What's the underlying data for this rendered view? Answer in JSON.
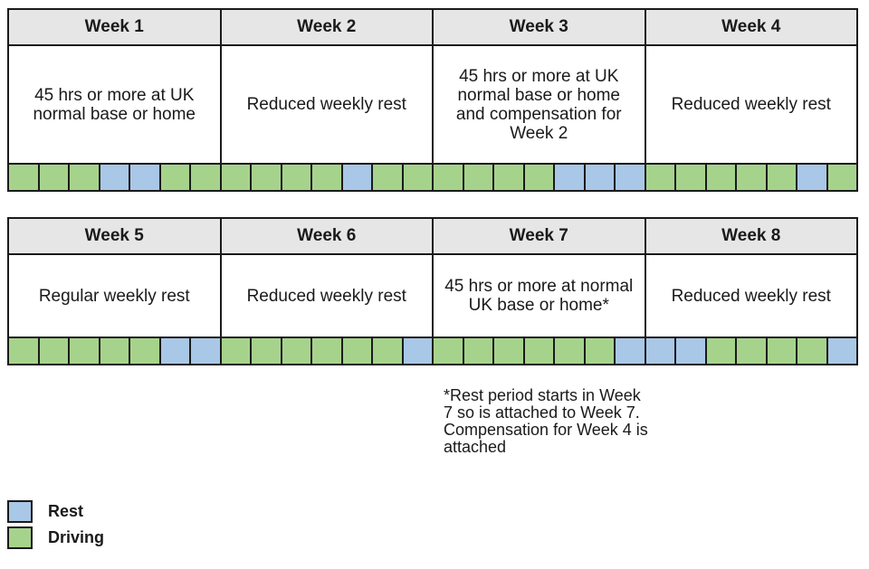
{
  "colors": {
    "driving": "#a6d38c",
    "rest": "#a9c7e6",
    "header_bg": "#e6e6e6"
  },
  "blocks": [
    {
      "weeks": [
        {
          "label": "Week 1",
          "description": "45 hrs or more at UK normal base or home"
        },
        {
          "label": "Week 2",
          "description": "Reduced weekly rest"
        },
        {
          "label": "Week 3",
          "description": "45 hrs or more at UK normal base or home and compensation for Week 2"
        },
        {
          "label": "Week 4",
          "description": "Reduced weekly rest"
        }
      ],
      "days": [
        "driving",
        "driving",
        "driving",
        "rest",
        "rest",
        "driving",
        "driving",
        "driving",
        "driving",
        "driving",
        "driving",
        "rest",
        "driving",
        "driving",
        "driving",
        "driving",
        "driving",
        "driving",
        "rest",
        "rest",
        "rest",
        "driving",
        "driving",
        "driving",
        "driving",
        "driving",
        "rest",
        "driving"
      ]
    },
    {
      "weeks": [
        {
          "label": "Week 5",
          "description": "Regular weekly rest"
        },
        {
          "label": "Week 6",
          "description": "Reduced weekly rest"
        },
        {
          "label": "Week 7",
          "description": "45 hrs or more at normal UK base or home*"
        },
        {
          "label": "Week 8",
          "description": "Reduced weekly rest"
        }
      ],
      "days": [
        "driving",
        "driving",
        "driving",
        "driving",
        "driving",
        "rest",
        "rest",
        "driving",
        "driving",
        "driving",
        "driving",
        "driving",
        "driving",
        "rest",
        "driving",
        "driving",
        "driving",
        "driving",
        "driving",
        "driving",
        "rest",
        "rest",
        "rest",
        "driving",
        "driving",
        "driving",
        "driving",
        "rest"
      ]
    }
  ],
  "footnote": "*Rest period starts in Week 7 so is attached to Week 7. Compensation for Week 4 is attached",
  "legend": {
    "rest_label": "Rest",
    "driving_label": "Driving"
  }
}
